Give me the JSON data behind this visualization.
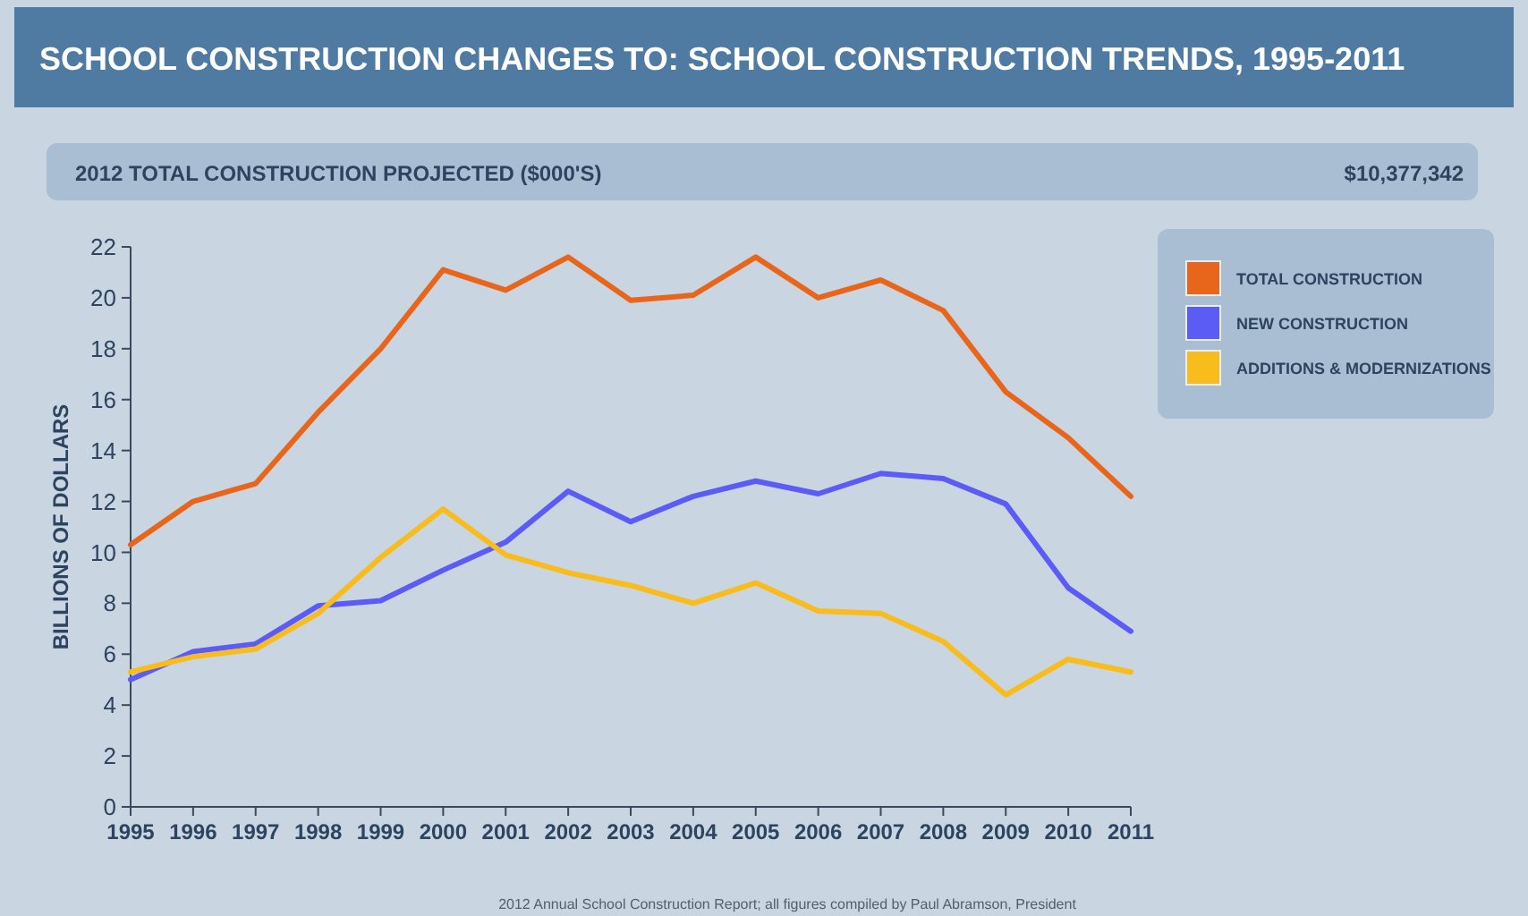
{
  "chart_data": {
    "type": "line",
    "title": "SCHOOL CONSTRUCTION CHANGES TO: SCHOOL CONSTRUCTION TRENDS, 1995-2011",
    "subtitle": "2012 TOTAL CONSTRUCTION PROJECTED ($000'S)",
    "annotations": [
      "$10,377,342",
      "2012 Annual School Construction Report; all figures compiled by Paul Abramson, President"
    ],
    "ylabel": "BILLIONS OF DOLLARS",
    "categories": [
      "1995",
      "1996",
      "1997",
      "1998",
      "1999",
      "2000",
      "2001",
      "2002",
      "2003",
      "2004",
      "2005",
      "2006",
      "2007",
      "2008",
      "2009",
      "2010",
      "2011"
    ],
    "series": [
      {
        "name": "TOTAL CONSTRUCTION",
        "color": "#e8661c",
        "values": [
          10.3,
          12.0,
          12.7,
          15.5,
          18.0,
          21.1,
          20.3,
          21.6,
          19.9,
          20.1,
          21.6,
          20.0,
          20.7,
          19.5,
          16.3,
          14.5,
          12.2
        ]
      },
      {
        "name": "NEW CONSTRUCTION",
        "color": "#5b5bf5",
        "values": [
          5.0,
          6.1,
          6.4,
          7.9,
          8.1,
          9.3,
          10.4,
          12.4,
          11.2,
          12.2,
          12.8,
          12.3,
          13.1,
          12.9,
          11.9,
          8.6,
          6.9
        ]
      },
      {
        "name": "ADDITIONS & MODERNIZATIONS",
        "color": "#f8bc1c",
        "values": [
          5.3,
          5.9,
          6.2,
          7.6,
          9.8,
          11.7,
          9.9,
          9.2,
          8.7,
          8.0,
          8.8,
          7.7,
          7.6,
          6.5,
          4.4,
          5.8,
          5.3
        ]
      }
    ],
    "ylim": [
      0,
      22
    ],
    "yticks": [
      0,
      2,
      4,
      6,
      8,
      10,
      12,
      14,
      16,
      18,
      20,
      22
    ],
    "grid": false,
    "legend": "top right",
    "marker": "none",
    "line_style": "solid"
  }
}
